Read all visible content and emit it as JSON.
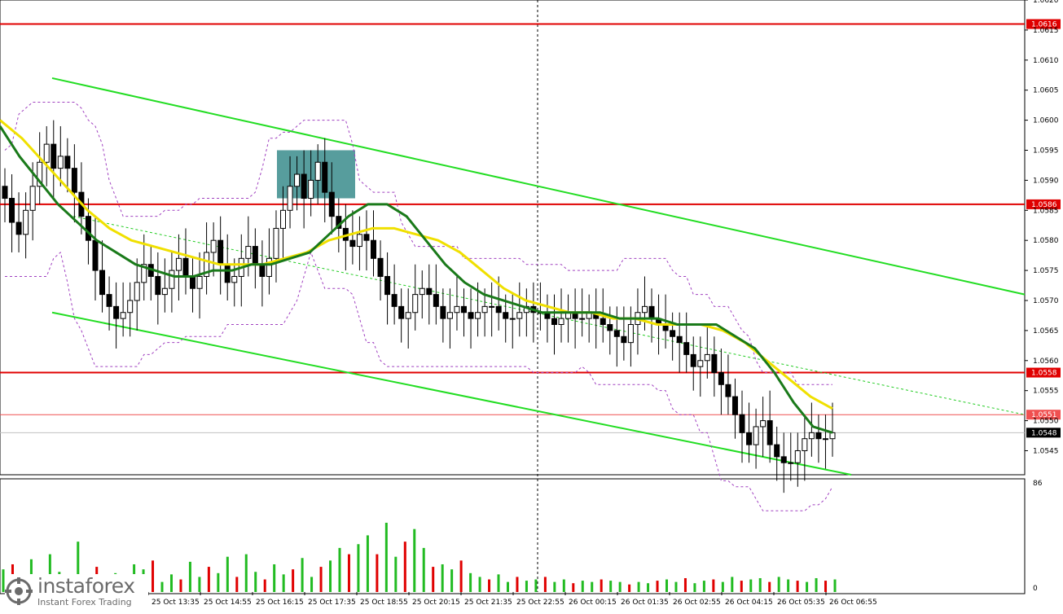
{
  "chart_data": {
    "type": "candlestick",
    "symbol_timeframe": "EURUSD M5 (intraday)",
    "price_axis": {
      "ylim": [
        1.0541,
        1.062
      ],
      "tick_labels": [
        "1.0620",
        "1.0615",
        "1.0610",
        "1.0605",
        "1.0600",
        "1.0595",
        "1.0590",
        "1.0585",
        "1.0580",
        "1.0575",
        "1.0570",
        "1.0565",
        "1.0560",
        "1.0555",
        "1.0550",
        "1.0545"
      ]
    },
    "time_axis_labels": [
      "25 Oct 13:35",
      "25 Oct 14:55",
      "25 Oct 16:15",
      "25 Oct 17:35",
      "25 Oct 18:55",
      "25 Oct 20:15",
      "25 Oct 21:35",
      "25 Oct 22:55",
      "26 Oct 00:15",
      "26 Oct 01:35",
      "26 Oct 02:55",
      "26 Oct 04:15",
      "26 Oct 05:35",
      "26 Oct 06:55"
    ],
    "horizontal_levels": [
      {
        "price": 1.0616,
        "label": "1.0616",
        "color": "#e00000"
      },
      {
        "price": 1.0586,
        "label": "1.0586",
        "color": "#e00000"
      },
      {
        "price": 1.0558,
        "label": "1.0558",
        "color": "#e00000"
      },
      {
        "price": 1.0551,
        "label": "1.0551",
        "color": "#f05050"
      }
    ],
    "current_price": {
      "price": 1.0548,
      "label": "1.0548"
    },
    "close_series": [
      1.0587,
      1.0583,
      1.0581,
      1.0585,
      1.0589,
      1.0593,
      1.0596,
      1.0592,
      1.0594,
      1.0592,
      1.0588,
      1.0584,
      1.058,
      1.0575,
      1.0571,
      1.0569,
      1.0567,
      1.0568,
      1.057,
      1.0573,
      1.0576,
      1.0574,
      1.0571,
      1.0572,
      1.0575,
      1.0577,
      1.0574,
      1.0572,
      1.0574,
      1.0578,
      1.058,
      1.0576,
      1.0573,
      1.0574,
      1.0577,
      1.0579,
      1.0576,
      1.0574,
      1.0577,
      1.0582,
      1.0585,
      1.0589,
      1.0591,
      1.0587,
      1.059,
      1.0593,
      1.0588,
      1.0584,
      1.0582,
      1.058,
      1.0579,
      1.0581,
      1.058,
      1.0577,
      1.0574,
      1.0571,
      1.0569,
      1.0567,
      1.0568,
      1.0571,
      1.0572,
      1.0571,
      1.0569,
      1.0567,
      1.0568,
      1.0569,
      1.0568,
      1.0567,
      1.0568,
      1.0569,
      1.0569,
      1.0568,
      1.0567,
      1.0567,
      1.0568,
      1.0569,
      1.0568,
      1.0568,
      1.0567,
      1.0566,
      1.0567,
      1.0568,
      1.0567,
      1.0567,
      1.0568,
      1.0567,
      1.0566,
      1.0565,
      1.0564,
      1.0563,
      1.0566,
      1.0568,
      1.0569,
      1.0567,
      1.0566,
      1.0565,
      1.0564,
      1.0563,
      1.0561,
      1.0559,
      1.056,
      1.0561,
      1.0558,
      1.0556,
      1.0554,
      1.0551,
      1.0548,
      1.0546,
      1.0549,
      1.055,
      1.0546,
      1.0544,
      1.0543,
      1.0543,
      1.0545,
      1.0547,
      1.0548,
      1.0547,
      1.0547,
      1.0548
    ],
    "ma_fast": {
      "color": "#1a7a1a",
      "values": [
        1.0599,
        1.0594,
        1.059,
        1.0586,
        1.0583,
        1.058,
        1.0578,
        1.0576,
        1.0575,
        1.0574,
        1.0574,
        1.0575,
        1.0575,
        1.0576,
        1.0576,
        1.0577,
        1.0578,
        1.0581,
        1.0584,
        1.0586,
        1.0586,
        1.0584,
        1.058,
        1.0576,
        1.0573,
        1.0571,
        1.057,
        1.0569,
        1.0568,
        1.0568,
        1.0568,
        1.0568,
        1.0567,
        1.0567,
        1.0567,
        1.0566,
        1.0566,
        1.0566,
        1.0564,
        1.0562,
        1.0558,
        1.0553,
        1.0549,
        1.0548
      ]
    },
    "ma_slow": {
      "color": "#f0e000",
      "values": [
        1.06,
        1.0597,
        1.0593,
        1.0589,
        1.0585,
        1.0582,
        1.058,
        1.0579,
        1.0578,
        1.0577,
        1.0576,
        1.0576,
        1.0576,
        1.0577,
        1.0578,
        1.058,
        1.0581,
        1.0582,
        1.0582,
        1.0581,
        1.058,
        1.0578,
        1.0575,
        1.0572,
        1.057,
        1.0569,
        1.0568,
        1.0568,
        1.0567,
        1.0567,
        1.0566,
        1.0566,
        1.0566,
        1.0565,
        1.0563,
        1.056,
        1.0557,
        1.0554,
        1.0552
      ]
    },
    "channel_upper": {
      "from": 1.0607,
      "to": 1.0571,
      "color": "#22dd22"
    },
    "channel_lower": {
      "from": 1.0568,
      "to": 1.0541,
      "color": "#22dd22"
    },
    "highlight_box": {
      "price_top": 1.0595,
      "price_bottom": 1.0587,
      "color": "#3a8c8c"
    },
    "volume_axis": {
      "max_label": "86",
      "min_label": "0"
    },
    "volume_bars": [
      18,
      22,
      14,
      26,
      12,
      30,
      16,
      9,
      40,
      14,
      20,
      10,
      15,
      12,
      22,
      18,
      25,
      8,
      14,
      10,
      24,
      12,
      20,
      15,
      28,
      12,
      30,
      16,
      10,
      22,
      14,
      18,
      27,
      12,
      20,
      25,
      35,
      30,
      38,
      45,
      30,
      55,
      28,
      40,
      50,
      35,
      20,
      22,
      18,
      25,
      15,
      12,
      10,
      14,
      8,
      12,
      9,
      10,
      12,
      8,
      10,
      7,
      9,
      8,
      10,
      9,
      8,
      6,
      8,
      7,
      9,
      10,
      8,
      11,
      7,
      9,
      10,
      8,
      12,
      9,
      10,
      11,
      8,
      12,
      10,
      9,
      8,
      11,
      9,
      10
    ]
  },
  "watermark": {
    "brand": "instaforex",
    "tagline": "Instant Forex Trading"
  }
}
